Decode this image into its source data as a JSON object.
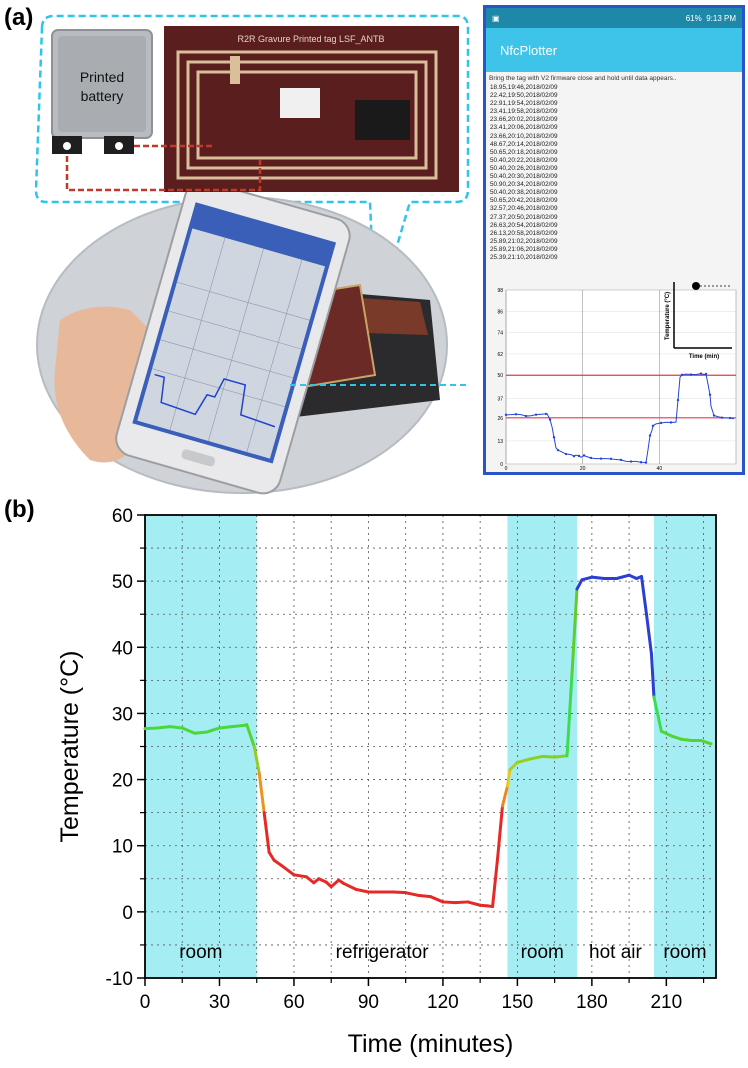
{
  "panel_a": {
    "label": "(a)",
    "battery_label_line1": "Printed",
    "battery_label_line2": "battery",
    "tag_title": "R2R Gravure Printed tag LSF_ANTB",
    "phone": {
      "status_text": "61%",
      "clock": "9:13 PM",
      "app_title": "NfcPlotter",
      "instruction": "Bring the tag with V2 firmware close and hold until data appears..",
      "readings": [
        "18.95,19:46,2018/02/09",
        "22.42,19:50,2018/02/09",
        "22.91,19:54,2018/02/09",
        "23.41,19:58,2018/02/09",
        "23.66,20:02,2018/02/09",
        "23.41,20:06,2018/02/09",
        "23.66,20:10,2018/02/09",
        "48.67,20:14,2018/02/09",
        "50.65,20:18,2018/02/09",
        "50.40,20:22,2018/02/09",
        "50.40,20:26,2018/02/09",
        "50.40,20:30,2018/02/09",
        "50.90,20:34,2018/02/09",
        "50.40,20:38,2018/02/09",
        "50.65,20:42,2018/02/09",
        "32.57,20:46,2018/02/09",
        "27.37,20:50,2018/02/09",
        "26.63,20:54,2018/02/09",
        "26.13,20:58,2018/02/09",
        "25.89,21:02,2018/02/09",
        "25.89,21:06,2018/02/09",
        "25.39,21:10,2018/02/09"
      ],
      "plot": {
        "y_ticks": [
          "98",
          "86",
          "74",
          "62",
          "50",
          "37",
          "26",
          "13",
          "0"
        ],
        "x_ticks": [
          "0",
          "20",
          "40"
        ],
        "legend_y": "Temperature (°C)",
        "legend_x": "Time (min)",
        "lines": [
          50,
          26
        ]
      }
    }
  },
  "panel_b": {
    "label": "(b)"
  },
  "chart_data": {
    "type": "line",
    "xlabel": "Time (minutes)",
    "ylabel": "Temperature (°C)",
    "xlim": [
      0,
      230
    ],
    "ylim": [
      -10,
      60
    ],
    "x_ticks": [
      0,
      30,
      60,
      90,
      120,
      150,
      180,
      210
    ],
    "y_ticks": [
      -10,
      0,
      10,
      20,
      30,
      40,
      50,
      60
    ],
    "grid": true,
    "regions": [
      {
        "label": "room",
        "x_start": 0,
        "x_end": 45,
        "shaded": true,
        "color": "#a4eef3"
      },
      {
        "label": "refrigerator",
        "x_start": 45,
        "x_end": 146,
        "shaded": false
      },
      {
        "label": "room",
        "x_start": 146,
        "x_end": 174,
        "shaded": true,
        "color": "#a4eef3"
      },
      {
        "label": "hot air",
        "x_start": 174,
        "x_end": 205,
        "shaded": false
      },
      {
        "label": "room",
        "x_start": 205,
        "x_end": 230,
        "shaded": true,
        "color": "#a4eef3"
      }
    ],
    "series": [
      {
        "x": [
          0,
          5,
          10,
          15,
          20,
          25,
          30,
          35,
          40,
          41,
          44,
          46,
          48,
          50,
          52,
          55,
          60,
          65,
          68,
          70,
          73,
          75,
          78,
          80,
          85,
          90,
          95,
          100,
          105,
          110,
          115,
          120,
          125,
          130,
          135,
          138,
          140,
          142,
          144,
          146,
          147,
          150,
          155,
          160,
          165,
          170,
          172,
          174,
          176,
          180,
          185,
          190,
          195,
          198,
          200,
          202,
          204,
          205,
          208,
          212,
          216,
          220,
          224,
          228
        ],
        "y": [
          27.7,
          27.8,
          28.0,
          27.8,
          27.0,
          27.2,
          27.8,
          28.0,
          28.2,
          28.3,
          25.0,
          21.0,
          15.0,
          9.0,
          7.8,
          7.0,
          5.6,
          5.3,
          4.4,
          5.0,
          4.5,
          3.8,
          4.8,
          4.3,
          3.4,
          3.0,
          3.0,
          3.0,
          2.9,
          2.5,
          2.3,
          1.5,
          1.4,
          1.5,
          1.0,
          0.9,
          0.8,
          8.0,
          16.0,
          19.0,
          21.5,
          22.6,
          23.1,
          23.5,
          23.4,
          23.6,
          36.0,
          48.8,
          50.2,
          50.6,
          50.4,
          50.4,
          50.9,
          50.4,
          50.7,
          45.0,
          39.0,
          32.5,
          27.3,
          26.6,
          26.1,
          25.9,
          25.9,
          25.4
        ]
      }
    ]
  }
}
